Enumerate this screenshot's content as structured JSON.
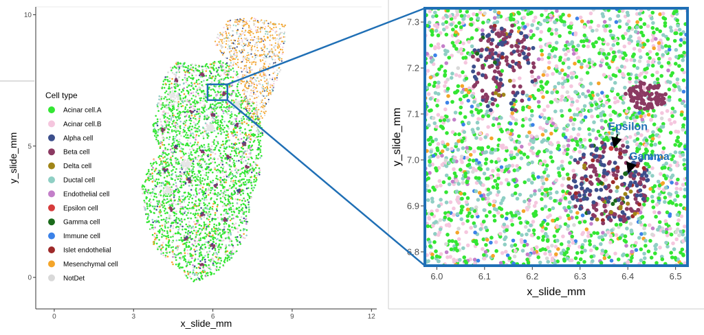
{
  "chart_data": [
    {
      "type": "scatter",
      "panel": "overview",
      "xlabel": "x_slide_mm",
      "ylabel": "y_slide_mm",
      "xlim": [
        -0.7,
        12.2
      ],
      "ylim": [
        -1.2,
        10.3
      ],
      "x_ticks": [
        0,
        3,
        6,
        9,
        12
      ],
      "y_ticks": [
        0,
        5,
        10
      ],
      "legend": {
        "title": "Cell type",
        "placement": "left-inside",
        "entries": [
          {
            "name": "Acinar cell.A",
            "color": "#33e633"
          },
          {
            "name": "Acinar cell.B",
            "color": "#f5c6de"
          },
          {
            "name": "Alpha cell",
            "color": "#3c4f8c"
          },
          {
            "name": "Beta cell",
            "color": "#8b3a62"
          },
          {
            "name": "Delta cell",
            "color": "#a08518"
          },
          {
            "name": "Ductal cell",
            "color": "#8fcfc4"
          },
          {
            "name": "Endothelial cell",
            "color": "#c37fc9"
          },
          {
            "name": "Epsilon cell",
            "color": "#d63c3c"
          },
          {
            "name": "Gamma cell",
            "color": "#1b6b1b"
          },
          {
            "name": "Immune cell",
            "color": "#3b82e8"
          },
          {
            "name": "Islet endothelial",
            "color": "#9e2a2a"
          },
          {
            "name": "Mesenchymal cell",
            "color": "#f4a52a"
          },
          {
            "name": "NotDet",
            "color": "#d9d9d9"
          }
        ]
      },
      "highlight_box": {
        "x": [
          5.8,
          6.55
        ],
        "y": [
          6.75,
          7.35
        ]
      }
    },
    {
      "type": "scatter",
      "panel": "zoom",
      "xlabel": "x_slide_mm",
      "ylabel": "y_slide_mm",
      "xlim": [
        5.975,
        6.525
      ],
      "ylim": [
        6.77,
        7.33
      ],
      "x_ticks": [
        6.0,
        6.1,
        6.2,
        6.3,
        6.4,
        6.5
      ],
      "y_ticks": [
        6.8,
        6.9,
        7.0,
        7.1,
        7.2,
        7.3
      ],
      "annotations": [
        {
          "text": "Epsilon",
          "target": [
            6.365,
            7.025
          ],
          "text_at": [
            6.4,
            7.065
          ]
        },
        {
          "text": "Gamma",
          "target": [
            6.395,
            6.97
          ],
          "text_at": [
            6.445,
            7.0
          ]
        }
      ]
    }
  ],
  "colors": {
    "zoom_frame": "#1f6fb5",
    "axis": "#333333"
  }
}
